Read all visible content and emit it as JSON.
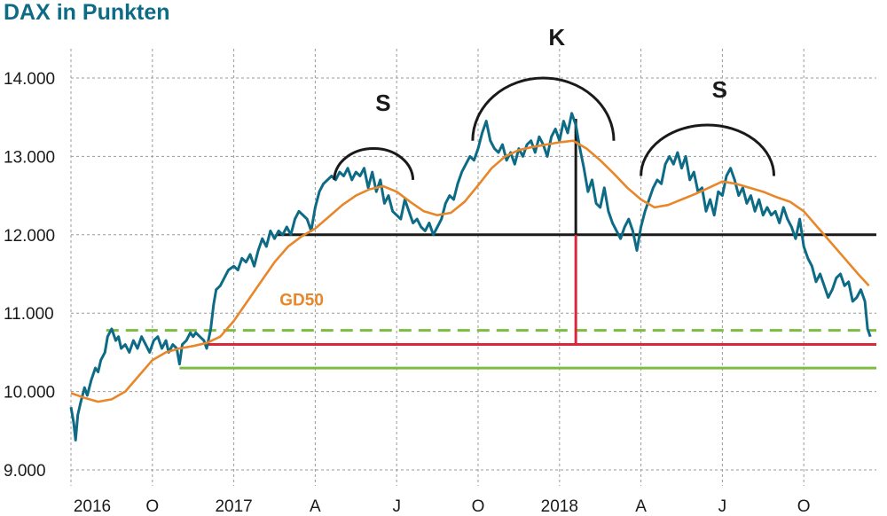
{
  "chart_data": {
    "type": "line",
    "title": "DAX in Punkten",
    "y_ticks": [
      {
        "value": 9000,
        "label": "9.000"
      },
      {
        "value": 10000,
        "label": "10.000"
      },
      {
        "value": 11000,
        "label": "11.000"
      },
      {
        "value": 12000,
        "label": "12.000"
      },
      {
        "value": 13000,
        "label": "13.000"
      },
      {
        "value": 14000,
        "label": "14.000"
      }
    ],
    "x_ticks": [
      {
        "month": 0,
        "label": "2016"
      },
      {
        "month": 3,
        "label": "O"
      },
      {
        "month": 6,
        "label": "2017"
      },
      {
        "month": 9,
        "label": "A"
      },
      {
        "month": 12,
        "label": "J"
      },
      {
        "month": 15,
        "label": "O"
      },
      {
        "month": 18,
        "label": "2018"
      },
      {
        "month": 21,
        "label": "A"
      },
      {
        "month": 24,
        "label": "J"
      },
      {
        "month": 27,
        "label": "O"
      }
    ],
    "series": [
      {
        "name": "DAX",
        "color": "#0e6b85",
        "points": [
          [
            0,
            9800
          ],
          [
            0.1,
            9600
          ],
          [
            0.17,
            9380
          ],
          [
            0.25,
            9700
          ],
          [
            0.35,
            9850
          ],
          [
            0.5,
            10050
          ],
          [
            0.6,
            9950
          ],
          [
            0.75,
            10150
          ],
          [
            0.9,
            10300
          ],
          [
            1.0,
            10250
          ],
          [
            1.1,
            10400
          ],
          [
            1.25,
            10500
          ],
          [
            1.35,
            10700
          ],
          [
            1.5,
            10800
          ],
          [
            1.65,
            10650
          ],
          [
            1.75,
            10700
          ],
          [
            1.85,
            10550
          ],
          [
            2.0,
            10600
          ],
          [
            2.15,
            10500
          ],
          [
            2.3,
            10650
          ],
          [
            2.45,
            10550
          ],
          [
            2.6,
            10700
          ],
          [
            2.75,
            10600
          ],
          [
            2.9,
            10500
          ],
          [
            3.05,
            10650
          ],
          [
            3.2,
            10700
          ],
          [
            3.35,
            10550
          ],
          [
            3.5,
            10650
          ],
          [
            3.6,
            10500
          ],
          [
            3.75,
            10600
          ],
          [
            3.9,
            10550
          ],
          [
            4.0,
            10350
          ],
          [
            4.1,
            10600
          ],
          [
            4.25,
            10650
          ],
          [
            4.4,
            10750
          ],
          [
            4.5,
            10700
          ],
          [
            4.6,
            10750
          ],
          [
            4.75,
            10700
          ],
          [
            4.9,
            10650
          ],
          [
            5.0,
            10550
          ],
          [
            5.15,
            10800
          ],
          [
            5.25,
            11100
          ],
          [
            5.35,
            11300
          ],
          [
            5.5,
            11350
          ],
          [
            5.65,
            11450
          ],
          [
            5.8,
            11550
          ],
          [
            6.0,
            11600
          ],
          [
            6.15,
            11550
          ],
          [
            6.3,
            11700
          ],
          [
            6.45,
            11650
          ],
          [
            6.6,
            11750
          ],
          [
            6.75,
            11600
          ],
          [
            6.9,
            11800
          ],
          [
            7.05,
            11950
          ],
          [
            7.2,
            11850
          ],
          [
            7.35,
            12050
          ],
          [
            7.5,
            11950
          ],
          [
            7.65,
            12050
          ],
          [
            7.8,
            12000
          ],
          [
            7.95,
            12100
          ],
          [
            8.1,
            12000
          ],
          [
            8.25,
            12200
          ],
          [
            8.4,
            12300
          ],
          [
            8.55,
            12250
          ],
          [
            8.7,
            12200
          ],
          [
            8.85,
            12050
          ],
          [
            9.0,
            12350
          ],
          [
            9.15,
            12550
          ],
          [
            9.3,
            12650
          ],
          [
            9.45,
            12700
          ],
          [
            9.6,
            12750
          ],
          [
            9.75,
            12700
          ],
          [
            9.9,
            12800
          ],
          [
            10.05,
            12750
          ],
          [
            10.2,
            12850
          ],
          [
            10.35,
            12700
          ],
          [
            10.5,
            12800
          ],
          [
            10.65,
            12750
          ],
          [
            10.8,
            12850
          ],
          [
            10.95,
            12600
          ],
          [
            11.1,
            12800
          ],
          [
            11.25,
            12550
          ],
          [
            11.4,
            12700
          ],
          [
            11.55,
            12400
          ],
          [
            11.7,
            12500
          ],
          [
            11.85,
            12300
          ],
          [
            12.0,
            12250
          ],
          [
            12.15,
            12200
          ],
          [
            12.3,
            12450
          ],
          [
            12.45,
            12300
          ],
          [
            12.6,
            12150
          ],
          [
            12.75,
            12200
          ],
          [
            12.9,
            12100
          ],
          [
            13.05,
            12050
          ],
          [
            13.2,
            12150
          ],
          [
            13.35,
            12000
          ],
          [
            13.5,
            12100
          ],
          [
            13.65,
            12200
          ],
          [
            13.8,
            12400
          ],
          [
            13.95,
            12500
          ],
          [
            14.1,
            12450
          ],
          [
            14.25,
            12650
          ],
          [
            14.4,
            12800
          ],
          [
            14.55,
            12900
          ],
          [
            14.7,
            13000
          ],
          [
            14.85,
            12950
          ],
          [
            15.0,
            13100
          ],
          [
            15.15,
            13300
          ],
          [
            15.3,
            13450
          ],
          [
            15.45,
            13200
          ],
          [
            15.6,
            13100
          ],
          [
            15.75,
            13050
          ],
          [
            15.9,
            13150
          ],
          [
            16.05,
            12950
          ],
          [
            16.2,
            13050
          ],
          [
            16.35,
            12900
          ],
          [
            16.5,
            13100
          ],
          [
            16.65,
            13000
          ],
          [
            16.8,
            13150
          ],
          [
            16.95,
            13200
          ],
          [
            17.1,
            13050
          ],
          [
            17.25,
            13250
          ],
          [
            17.4,
            13150
          ],
          [
            17.55,
            13000
          ],
          [
            17.7,
            13250
          ],
          [
            17.85,
            13350
          ],
          [
            18.0,
            13200
          ],
          [
            18.15,
            13450
          ],
          [
            18.3,
            13300
          ],
          [
            18.45,
            13550
          ],
          [
            18.6,
            13400
          ],
          [
            18.75,
            13100
          ],
          [
            18.9,
            12850
          ],
          [
            19.05,
            12550
          ],
          [
            19.2,
            12700
          ],
          [
            19.35,
            12400
          ],
          [
            19.5,
            12350
          ],
          [
            19.65,
            12600
          ],
          [
            19.8,
            12300
          ],
          [
            19.95,
            12150
          ],
          [
            20.1,
            12050
          ],
          [
            20.25,
            11950
          ],
          [
            20.4,
            12100
          ],
          [
            20.55,
            12200
          ],
          [
            20.7,
            12050
          ],
          [
            20.85,
            11800
          ],
          [
            21.0,
            12100
          ],
          [
            21.15,
            12300
          ],
          [
            21.3,
            12450
          ],
          [
            21.45,
            12600
          ],
          [
            21.6,
            12700
          ],
          [
            21.75,
            12650
          ],
          [
            21.9,
            12900
          ],
          [
            22.05,
            13000
          ],
          [
            22.2,
            12900
          ],
          [
            22.35,
            13050
          ],
          [
            22.5,
            12850
          ],
          [
            22.65,
            13000
          ],
          [
            22.8,
            12700
          ],
          [
            22.95,
            12800
          ],
          [
            23.1,
            12550
          ],
          [
            23.25,
            12600
          ],
          [
            23.4,
            12300
          ],
          [
            23.55,
            12450
          ],
          [
            23.7,
            12250
          ],
          [
            23.85,
            12550
          ],
          [
            24.0,
            12500
          ],
          [
            24.15,
            12750
          ],
          [
            24.3,
            12850
          ],
          [
            24.45,
            12700
          ],
          [
            24.6,
            12500
          ],
          [
            24.75,
            12600
          ],
          [
            24.9,
            12400
          ],
          [
            25.05,
            12500
          ],
          [
            25.2,
            12300
          ],
          [
            25.35,
            12450
          ],
          [
            25.5,
            12250
          ],
          [
            25.65,
            12350
          ],
          [
            25.8,
            12250
          ],
          [
            25.95,
            12300
          ],
          [
            26.1,
            12150
          ],
          [
            26.25,
            12350
          ],
          [
            26.4,
            12200
          ],
          [
            26.55,
            12100
          ],
          [
            26.7,
            11950
          ],
          [
            26.85,
            12200
          ],
          [
            27.0,
            11850
          ],
          [
            27.15,
            11700
          ],
          [
            27.3,
            11600
          ],
          [
            27.45,
            11400
          ],
          [
            27.6,
            11500
          ],
          [
            27.75,
            11350
          ],
          [
            27.9,
            11200
          ],
          [
            28.05,
            11300
          ],
          [
            28.2,
            11450
          ],
          [
            28.35,
            11500
          ],
          [
            28.5,
            11350
          ],
          [
            28.65,
            11400
          ],
          [
            28.8,
            11150
          ],
          [
            28.95,
            11200
          ],
          [
            29.1,
            11300
          ],
          [
            29.25,
            11150
          ],
          [
            29.35,
            10800
          ],
          [
            29.45,
            10700
          ]
        ]
      },
      {
        "name": "GD50",
        "color": "#e8872a",
        "points": [
          [
            0,
            9980
          ],
          [
            0.5,
            9920
          ],
          [
            1.0,
            9870
          ],
          [
            1.5,
            9900
          ],
          [
            2.0,
            10000
          ],
          [
            2.5,
            10200
          ],
          [
            3.0,
            10400
          ],
          [
            3.5,
            10500
          ],
          [
            4.0,
            10550
          ],
          [
            4.5,
            10580
          ],
          [
            5.0,
            10620
          ],
          [
            5.5,
            10700
          ],
          [
            6.0,
            10900
          ],
          [
            6.5,
            11150
          ],
          [
            7.0,
            11400
          ],
          [
            7.5,
            11650
          ],
          [
            8.0,
            11850
          ],
          [
            8.5,
            11980
          ],
          [
            9.0,
            12080
          ],
          [
            9.5,
            12230
          ],
          [
            10.0,
            12380
          ],
          [
            10.5,
            12500
          ],
          [
            11.0,
            12580
          ],
          [
            11.5,
            12620
          ],
          [
            12.0,
            12550
          ],
          [
            12.5,
            12420
          ],
          [
            13.0,
            12300
          ],
          [
            13.5,
            12250
          ],
          [
            14.0,
            12280
          ],
          [
            14.5,
            12420
          ],
          [
            15.0,
            12630
          ],
          [
            15.5,
            12850
          ],
          [
            16.0,
            13000
          ],
          [
            16.5,
            13080
          ],
          [
            17.0,
            13120
          ],
          [
            17.5,
            13150
          ],
          [
            18.0,
            13180
          ],
          [
            18.5,
            13200
          ],
          [
            19.0,
            13100
          ],
          [
            19.5,
            12950
          ],
          [
            20.0,
            12780
          ],
          [
            20.5,
            12600
          ],
          [
            21.0,
            12450
          ],
          [
            21.5,
            12350
          ],
          [
            22.0,
            12380
          ],
          [
            22.5,
            12450
          ],
          [
            23.0,
            12520
          ],
          [
            23.5,
            12600
          ],
          [
            24.0,
            12680
          ],
          [
            24.5,
            12650
          ],
          [
            25.0,
            12600
          ],
          [
            25.5,
            12550
          ],
          [
            26.0,
            12480
          ],
          [
            26.5,
            12420
          ],
          [
            27.0,
            12300
          ],
          [
            27.5,
            12100
          ],
          [
            28.0,
            11900
          ],
          [
            28.5,
            11700
          ],
          [
            29.0,
            11500
          ],
          [
            29.4,
            11350
          ]
        ]
      }
    ],
    "horizontal_lines": [
      {
        "value": 12000,
        "from": 7.6,
        "to": 30,
        "color": "#1a1a1a",
        "style": "solid"
      },
      {
        "value": 10780,
        "from": 1.3,
        "to": 30,
        "color": "#7dbb42",
        "style": "dashed"
      },
      {
        "value": 10600,
        "from": 5.0,
        "to": 30,
        "color": "#d9283a",
        "style": "solid"
      },
      {
        "value": 10300,
        "from": 4.0,
        "to": 30,
        "color": "#7dbb42",
        "style": "solid"
      }
    ],
    "vertical_lines": [
      {
        "x": 18.6,
        "from": 12000,
        "to": 10600,
        "color": "#d9283a"
      },
      {
        "x": 18.6,
        "from": 12000,
        "to": 13480,
        "color": "#1a1a1a"
      }
    ],
    "annotations": [
      {
        "text": "S",
        "x": 11.5,
        "y": 13580,
        "color": "#1a1a1a"
      },
      {
        "text": "K",
        "x": 17.9,
        "y": 14420,
        "color": "#1a1a1a"
      },
      {
        "text": "S",
        "x": 23.9,
        "y": 13750,
        "color": "#1a1a1a"
      },
      {
        "text": "GD50",
        "x": 8.5,
        "y": 11100,
        "color": "#e8872a"
      }
    ],
    "arcs": [
      {
        "x1": 9.7,
        "x2": 12.6,
        "base": 12700,
        "top": 13100
      },
      {
        "x1": 14.8,
        "x2": 20.0,
        "base": 13200,
        "top": 14000
      },
      {
        "x1": 21.0,
        "x2": 25.9,
        "base": 12750,
        "top": 13400
      }
    ],
    "grid": true,
    "ylim": [
      8800,
      14150
    ],
    "xlim": [
      0,
      30
    ]
  }
}
